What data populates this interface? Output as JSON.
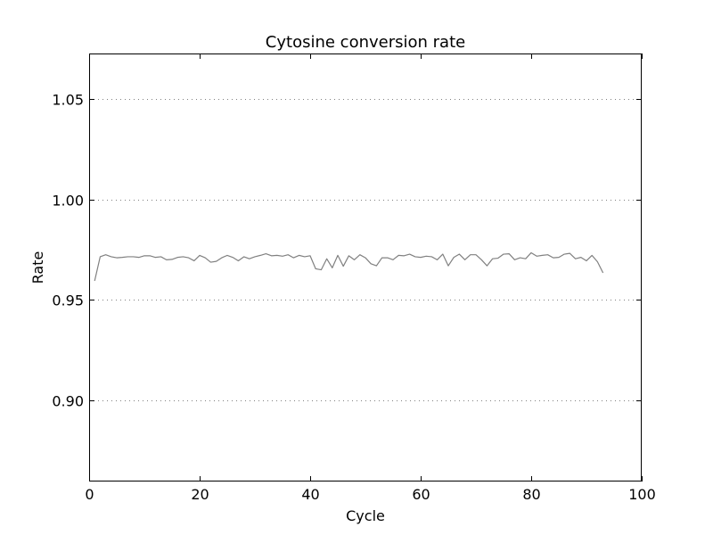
{
  "chart_data": {
    "type": "line",
    "title": "Cytosine conversion rate",
    "xlabel": "Cycle",
    "ylabel": "Rate",
    "xlim": [
      0,
      100
    ],
    "ylim": [
      0.8595,
      1.0728
    ],
    "xticks": [
      0,
      20,
      40,
      60,
      80,
      100
    ],
    "yticks": [
      0.9,
      0.95,
      1.0,
      1.05
    ],
    "xtick_labels": [
      "0",
      "20",
      "40",
      "60",
      "80",
      "100"
    ],
    "ytick_labels": [
      "0.90",
      "0.95",
      "1.00",
      "1.05"
    ],
    "grid": "y-dotted",
    "legend": "none",
    "line_color": "#808080",
    "series": [
      {
        "x": [
          1,
          2,
          3,
          4,
          5,
          6,
          7,
          8,
          9,
          10,
          11,
          12,
          13,
          14,
          15,
          16,
          17,
          18,
          19,
          20,
          21,
          22,
          23,
          24,
          25,
          26,
          27,
          28,
          29,
          30,
          31,
          32,
          33,
          34,
          35,
          36,
          37,
          38,
          39,
          40,
          41,
          42,
          43,
          44,
          45,
          46,
          47,
          48,
          49,
          50,
          51,
          52,
          53,
          54,
          55,
          56,
          57,
          58,
          59,
          60,
          61,
          62,
          63,
          64,
          65,
          66,
          67,
          68,
          69,
          70,
          71,
          72,
          73,
          74,
          75,
          76,
          77,
          78,
          79,
          80,
          81,
          82,
          83,
          84,
          85,
          86,
          87,
          88,
          89,
          90,
          91,
          92,
          93
        ],
        "values": [
          0.9595,
          0.9715,
          0.9725,
          0.9715,
          0.971,
          0.9712,
          0.9715,
          0.9715,
          0.9712,
          0.972,
          0.972,
          0.9712,
          0.9715,
          0.97,
          0.9702,
          0.9712,
          0.9715,
          0.971,
          0.9695,
          0.9722,
          0.971,
          0.9688,
          0.9692,
          0.971,
          0.9722,
          0.9712,
          0.9695,
          0.9715,
          0.9705,
          0.9715,
          0.9722,
          0.973,
          0.972,
          0.9722,
          0.9718,
          0.9725,
          0.971,
          0.9722,
          0.9715,
          0.972,
          0.9655,
          0.965,
          0.9705,
          0.966,
          0.9722,
          0.9668,
          0.972,
          0.97,
          0.9725,
          0.971,
          0.968,
          0.967,
          0.971,
          0.971,
          0.97,
          0.9722,
          0.972,
          0.9728,
          0.9715,
          0.9712,
          0.9718,
          0.9715,
          0.97,
          0.9728,
          0.967,
          0.9712,
          0.9728,
          0.97,
          0.9725,
          0.9725,
          0.97,
          0.967,
          0.9705,
          0.9708,
          0.9728,
          0.973,
          0.97,
          0.971,
          0.9705,
          0.9735,
          0.9718,
          0.9722,
          0.9725,
          0.971,
          0.9712,
          0.9728,
          0.9732,
          0.9705,
          0.9712,
          0.9695,
          0.9722,
          0.969,
          0.9635
        ]
      }
    ]
  }
}
